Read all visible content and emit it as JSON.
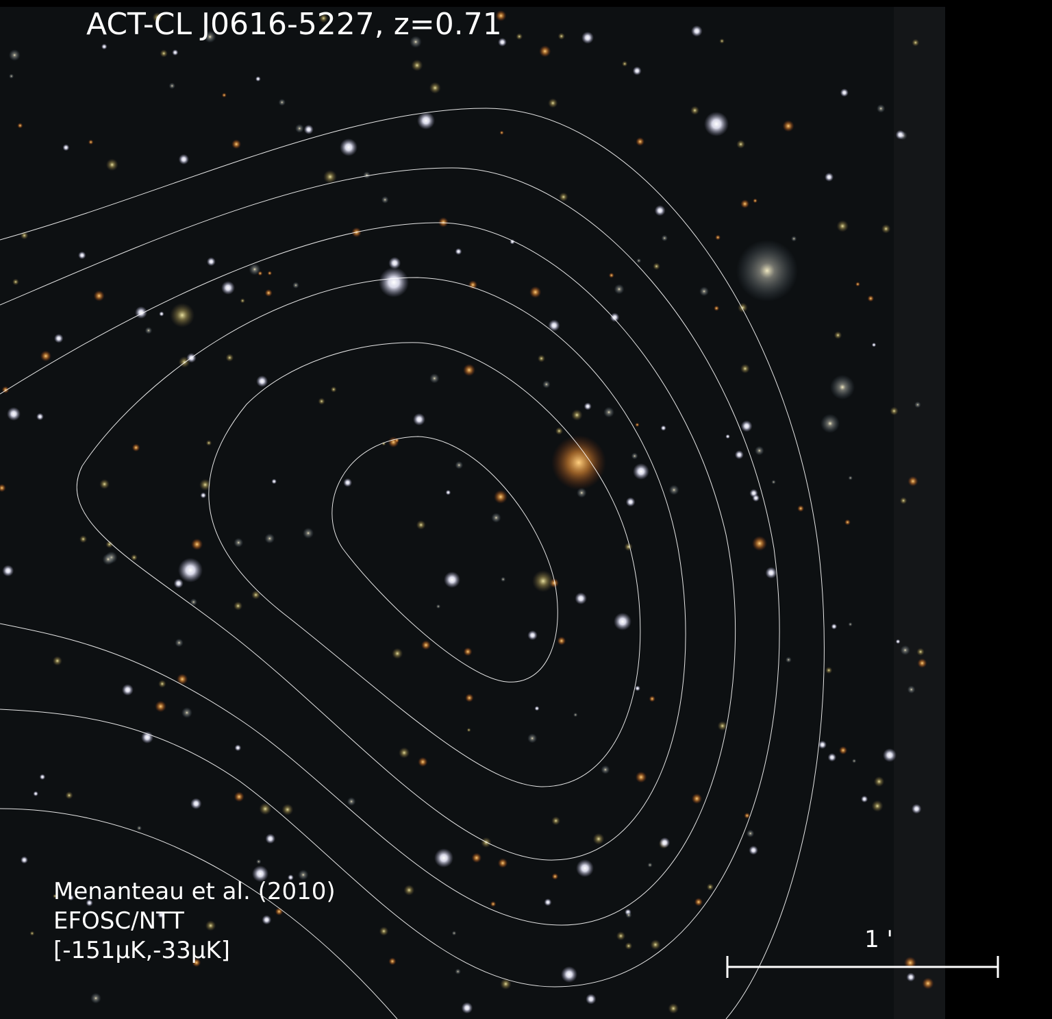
{
  "title": "ACT-CL J0616-5227,  z=0.71",
  "credits": [
    "Menanteau et al. (2010)",
    "EFOSC/NTT",
    "[-151μK,-33μK]"
  ],
  "scale_label": "1 '"
}
